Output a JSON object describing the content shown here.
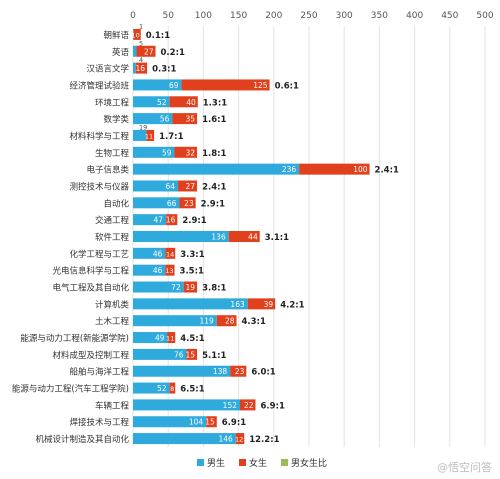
{
  "chart_data": {
    "type": "bar",
    "orientation": "horizontal",
    "stacked": true,
    "xlim": [
      0,
      500
    ],
    "xticks": [
      0,
      50,
      100,
      150,
      200,
      250,
      300,
      350,
      400,
      450,
      500
    ],
    "grid": true,
    "legend_position": "bottom",
    "categories": [
      "朝鲜语",
      "英语",
      "汉语言文学",
      "经济管理试验班",
      "环境工程",
      "数学类",
      "材料科学与工程",
      "生物工程",
      "电子信息类",
      "测控技术与仪器",
      "自动化",
      "交通工程",
      "软件工程",
      "化学工程与工艺",
      "光电信息科学与工程",
      "电气工程及其自动化",
      "计算机类",
      "土木工程",
      "能源与动力工程(新能源学院)",
      "材料成型及控制工程",
      "船舶与海洋工程",
      "能源与动力工程(汽车工程学院)",
      "车辆工程",
      "焊接技术与工程",
      "机械设计制造及其自动化"
    ],
    "series": [
      {
        "name": "男生",
        "color": "#2eaadc",
        "values": [
          1,
          5,
          4,
          69,
          52,
          56,
          19,
          59,
          236,
          64,
          66,
          47,
          136,
          46,
          46,
          72,
          163,
          119,
          49,
          76,
          138,
          52,
          152,
          104,
          146
        ]
      },
      {
        "name": "女生",
        "color": "#e0401c",
        "values": [
          10,
          27,
          16,
          125,
          40,
          35,
          11,
          32,
          100,
          27,
          23,
          16,
          44,
          14,
          13,
          19,
          39,
          28,
          11,
          15,
          23,
          8,
          22,
          15,
          12
        ]
      },
      {
        "name": "男女生比",
        "color": "#9bbb59"
      }
    ],
    "ratio_labels": [
      "0.1:1",
      "0.2:1",
      "0.3:1",
      "0.6:1",
      "1.3:1",
      "1.6:1",
      "1.7:1",
      "1.8:1",
      "2.4:1",
      "2.4:1",
      "2.9:1",
      "2.9:1",
      "3.1:1",
      "3.3:1",
      "3.5:1",
      "3.8:1",
      "4.2:1",
      "4.3:1",
      "4.5:1",
      "5.1:1",
      "6.0:1",
      "6.5:1",
      "6.9:1",
      "6.9:1",
      "12.2:1"
    ]
  },
  "watermark": "@悟空问答"
}
